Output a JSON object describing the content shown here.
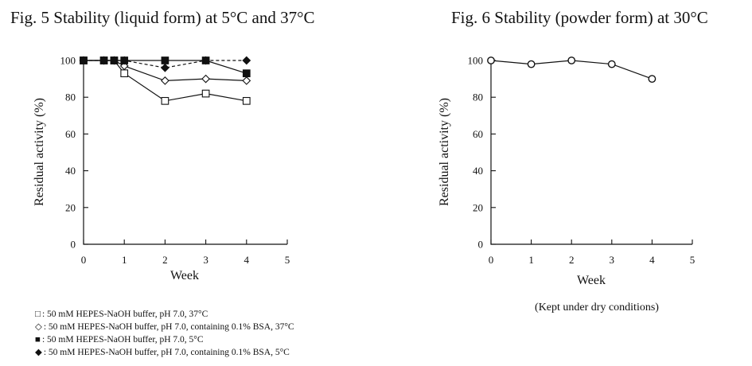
{
  "chart_data": [
    {
      "type": "line",
      "title": "Fig. 5  Stability (liquid form) at 5°C and 37°C",
      "xlabel": "Week",
      "ylabel": "Residual activity (%)",
      "xlim": [
        0,
        5
      ],
      "ylim": [
        0,
        100
      ],
      "xticks": [
        "0",
        "1",
        "2",
        "3",
        "4",
        "5"
      ],
      "yticks": [
        "0",
        "20",
        "40",
        "60",
        "80",
        "100"
      ],
      "grid": false,
      "series": [
        {
          "marker": "open-square",
          "line": "solid",
          "x": [
            0,
            0.5,
            0.75,
            1,
            2,
            3,
            4
          ],
          "y": [
            100,
            100,
            100,
            93,
            78,
            82,
            78
          ]
        },
        {
          "marker": "open-diamond",
          "line": "solid",
          "x": [
            0,
            0.5,
            0.75,
            1,
            2,
            3,
            4
          ],
          "y": [
            100,
            100,
            100,
            97,
            89,
            90,
            89
          ]
        },
        {
          "marker": "filled-square",
          "line": "solid",
          "x": [
            0,
            0.5,
            0.75,
            1,
            2,
            3,
            4
          ],
          "y": [
            100,
            100,
            100,
            100,
            100,
            100,
            93
          ]
        },
        {
          "marker": "filled-diamond",
          "line": "dashed",
          "x": [
            0,
            0.5,
            0.75,
            1,
            2,
            3,
            4
          ],
          "y": [
            100,
            100,
            100,
            100,
            96,
            100,
            100
          ]
        }
      ],
      "legend": [
        {
          "symbol": "□",
          "text": ": 50 mM HEPES-NaOH buffer, pH 7.0, 37°C"
        },
        {
          "symbol": "◇",
          "text": ": 50 mM HEPES-NaOH buffer, pH 7.0, containing 0.1% BSA, 37°C"
        },
        {
          "symbol": "■",
          "text": ": 50 mM HEPES-NaOH buffer, pH 7.0, 5°C"
        },
        {
          "symbol": "◆",
          "text": ": 50 mM HEPES-NaOH buffer, pH 7.0, containing 0.1% BSA, 5°C"
        }
      ]
    },
    {
      "type": "line",
      "title": "Fig. 6  Stability (powder form) at 30°C",
      "xlabel": "Week",
      "ylabel": "Residual activity (%)",
      "note": "(Kept under dry conditions)",
      "xlim": [
        0,
        5
      ],
      "ylim": [
        0,
        100
      ],
      "xticks": [
        "0",
        "1",
        "2",
        "3",
        "4",
        "5"
      ],
      "yticks": [
        "0",
        "20",
        "40",
        "60",
        "80",
        "100"
      ],
      "grid": false,
      "series": [
        {
          "marker": "open-circle",
          "line": "solid",
          "x": [
            0,
            1,
            2,
            3,
            4
          ],
          "y": [
            100,
            98,
            100,
            98,
            90
          ]
        }
      ]
    }
  ]
}
